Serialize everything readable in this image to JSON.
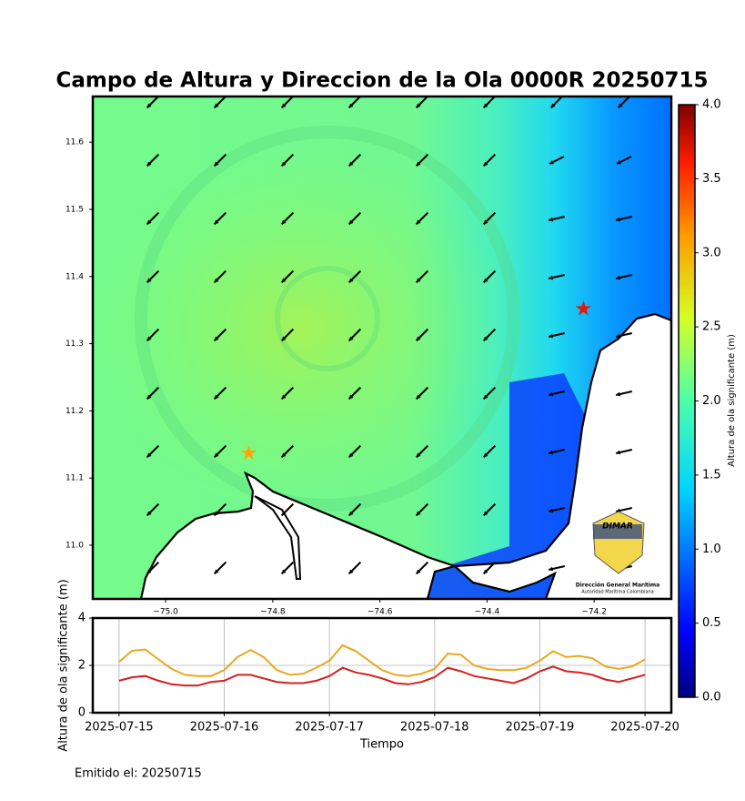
{
  "title": "Campo de Altura y Direccion de la Ola 0000R 20250715",
  "footer": "Emitido el: 20250715",
  "logo": {
    "name": "DIMAR",
    "line1": "Dirección General Marítima",
    "line2": "Autoridad Marítima Colombiana"
  },
  "chart_data": [
    {
      "type": "map",
      "xlim": [
        -75.136,
        -74.056
      ],
      "ylim": [
        10.92,
        11.668
      ],
      "xticks": [
        {
          "value": -75.0,
          "label": "−75.0"
        },
        {
          "value": -74.8,
          "label": "−74.8"
        },
        {
          "value": -74.6,
          "label": "−74.6"
        },
        {
          "value": -74.4,
          "label": "−74.4"
        },
        {
          "value": -74.2,
          "label": "−74.2"
        }
      ],
      "yticks": [
        {
          "value": 11.0,
          "label": "11.0"
        },
        11.1,
        11.2,
        11.3,
        11.4,
        11.5,
        11.6
      ],
      "markers": [
        {
          "x": -74.22,
          "y": 11.352,
          "color": "#e3170a"
        },
        {
          "x": -74.845,
          "y": 11.137,
          "color": "#ffa500"
        }
      ],
      "colorbar": {
        "label": "Altura de ola significante (m)",
        "lim": [
          0,
          4
        ],
        "ticks": [
          {
            "value": 0,
            "label": "0.0"
          },
          {
            "value": 0.5,
            "label": "0.5"
          },
          {
            "value": 1,
            "label": "1.0"
          },
          {
            "value": 1.5,
            "label": "1.5"
          },
          {
            "value": 2,
            "label": "2.0"
          },
          {
            "value": 2.5,
            "label": "2.5"
          },
          {
            "value": 3,
            "label": "3.0"
          },
          {
            "value": 3.5,
            "label": "3.5"
          },
          {
            "value": 4,
            "label": "4.0"
          }
        ]
      }
    },
    {
      "type": "line",
      "y_label": "Altura de ola significante (m)",
      "x_label": "Tiempo",
      "xlim": [
        "2025-07-14T18:00",
        "2025-07-20T06:00"
      ],
      "xticks": [
        "2025-07-15",
        "2025-07-16",
        "2025-07-17",
        "2025-07-18",
        "2025-07-19",
        "2025-07-20"
      ],
      "ylim": [
        0,
        4
      ],
      "yticks": [
        0,
        2,
        4
      ],
      "grid": true,
      "x": [
        "2025-07-15T00:00",
        "2025-07-15T03:00",
        "2025-07-15T06:00",
        "2025-07-15T09:00",
        "2025-07-15T12:00",
        "2025-07-15T15:00",
        "2025-07-15T18:00",
        "2025-07-15T21:00",
        "2025-07-16T00:00",
        "2025-07-16T03:00",
        "2025-07-16T06:00",
        "2025-07-16T09:00",
        "2025-07-16T12:00",
        "2025-07-16T15:00",
        "2025-07-16T18:00",
        "2025-07-16T21:00",
        "2025-07-17T00:00",
        "2025-07-17T03:00",
        "2025-07-17T06:00",
        "2025-07-17T09:00",
        "2025-07-17T12:00",
        "2025-07-17T15:00",
        "2025-07-17T18:00",
        "2025-07-17T21:00",
        "2025-07-18T00:00",
        "2025-07-18T03:00",
        "2025-07-18T06:00",
        "2025-07-18T09:00",
        "2025-07-18T12:00",
        "2025-07-18T15:00",
        "2025-07-18T18:00",
        "2025-07-18T21:00",
        "2025-07-19T00:00",
        "2025-07-19T03:00",
        "2025-07-19T06:00",
        "2025-07-19T09:00",
        "2025-07-19T12:00",
        "2025-07-19T15:00",
        "2025-07-19T18:00",
        "2025-07-19T21:00",
        "2025-07-20T00:00"
      ],
      "series": [
        {
          "color": "#e8a820",
          "values": [
            2.15,
            2.62,
            2.67,
            2.25,
            1.85,
            1.6,
            1.55,
            1.55,
            1.8,
            2.35,
            2.65,
            2.35,
            1.8,
            1.6,
            1.65,
            1.9,
            2.2,
            2.85,
            2.6,
            2.2,
            1.8,
            1.6,
            1.55,
            1.65,
            1.85,
            2.5,
            2.45,
            2.0,
            1.85,
            1.8,
            1.8,
            1.9,
            2.2,
            2.6,
            2.35,
            2.4,
            2.3,
            1.95,
            1.85,
            1.95,
            2.25
          ]
        },
        {
          "color": "#d42020",
          "values": [
            1.35,
            1.5,
            1.55,
            1.35,
            1.2,
            1.15,
            1.15,
            1.3,
            1.35,
            1.6,
            1.6,
            1.45,
            1.3,
            1.25,
            1.25,
            1.35,
            1.55,
            1.9,
            1.7,
            1.6,
            1.45,
            1.25,
            1.2,
            1.3,
            1.5,
            1.9,
            1.75,
            1.55,
            1.45,
            1.35,
            1.25,
            1.45,
            1.75,
            1.95,
            1.75,
            1.7,
            1.6,
            1.4,
            1.3,
            1.45,
            1.6
          ]
        }
      ]
    }
  ]
}
